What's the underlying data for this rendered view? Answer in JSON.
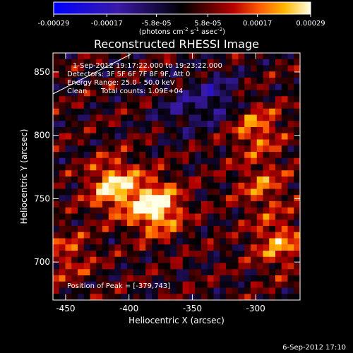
{
  "chart_data": {
    "type": "heatmap",
    "title": "Reconstructed RHESSI Image",
    "xlabel": "Heliocentric X (arcsec)",
    "ylabel": "Heliocentric Y (arcsec)",
    "xlim": [
      -460,
      -265
    ],
    "ylim": [
      670,
      865
    ],
    "x_ticks": [
      -450,
      -400,
      -350,
      -300
    ],
    "y_ticks": [
      700,
      750,
      800,
      850
    ],
    "x_tick_labels": [
      "-450",
      "-400",
      "-350",
      "-300"
    ],
    "y_tick_labels": [
      "700",
      "750",
      "800",
      "850"
    ],
    "colorbar": {
      "ticks": [
        -0.00029,
        -0.00017,
        -5.8e-05,
        5.8e-05,
        0.00017,
        0.00029
      ],
      "tick_labels": [
        "-0.00029",
        "-0.00017",
        "-5.8e-05",
        "5.8e-05",
        "0.00017",
        "0.00029"
      ],
      "unit_main": "(photons cm",
      "unit_sup1": "-2",
      "unit_mid1": " s",
      "unit_sup2": "-1",
      "unit_mid2": " asec",
      "unit_sup3": "-2",
      "unit_end": ")",
      "range": [
        -0.00029,
        0.00029
      ]
    },
    "annotations": {
      "time": "1-Sep-2012 19:17:22.000 to 19:23:22.000",
      "detectors": "Detectors: 3F 5F 6F 7F 8F 9F, Att 0",
      "energy": "Energy Range: 25.0 - 50.0 keV",
      "clean": "Clean",
      "counts": "Total counts: 1.09E+04",
      "peak": "Position of Peak = [-379,743]"
    },
    "sources": [
      {
        "x": -379,
        "y": 743,
        "value": 0.00029
      },
      {
        "x": -412,
        "y": 760,
        "value": 0.00024
      },
      {
        "x": -300,
        "y": 805,
        "value": 0.00016
      },
      {
        "x": -282,
        "y": 715,
        "value": 0.00017
      },
      {
        "x": -295,
        "y": 760,
        "value": 0.00013
      },
      {
        "x": -448,
        "y": 705,
        "value": 0.00011
      },
      {
        "x": -330,
        "y": 830,
        "value": -0.00012
      },
      {
        "x": -360,
        "y": 820,
        "value": -8e-05
      }
    ],
    "grid": false
  },
  "footer": {
    "date": "6-Sep-2012 17:10"
  }
}
